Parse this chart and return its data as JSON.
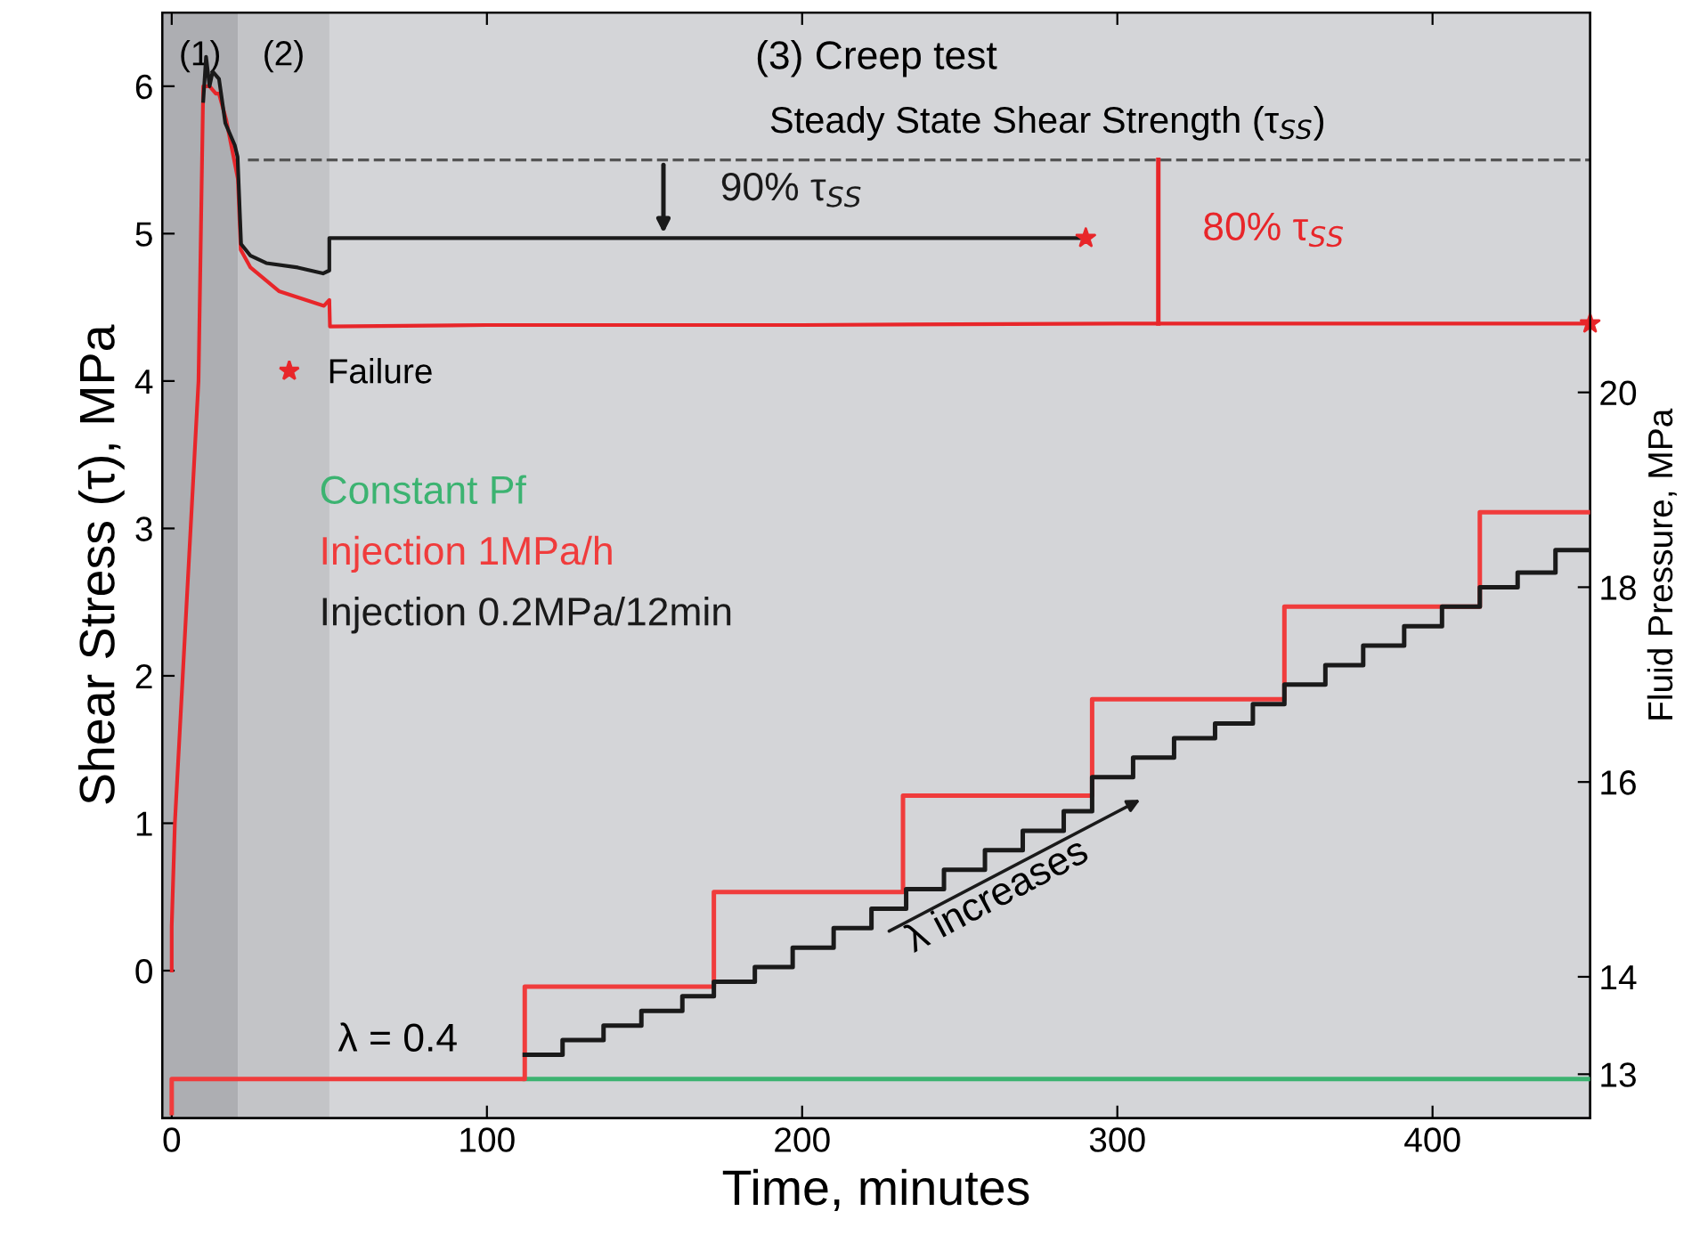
{
  "chart_data": {
    "type": "line",
    "xlabel": "Time, minutes",
    "ylabel": "Shear Stress (τ), MPa",
    "y2label": "Fluid Pressure, MPa",
    "xlim": [
      -3,
      450
    ],
    "xticks": [
      0,
      100,
      200,
      300,
      400
    ],
    "ylim": [
      -1,
      6.5
    ],
    "yticks": [
      0,
      1,
      2,
      3,
      4,
      5,
      6
    ],
    "y2lim": [
      12.55,
      23.9
    ],
    "y2ticks": [
      13,
      14,
      16,
      18,
      20
    ],
    "legend": "top left",
    "grid": false,
    "bands": [
      {
        "axis": "x",
        "from": -3,
        "to": 21,
        "label": "(1)",
        "color": "#adaeb2"
      },
      {
        "axis": "x",
        "from": 21,
        "to": 50,
        "label": "(2)",
        "color": "#c3c4c7"
      }
    ],
    "ref_lines": [
      {
        "axis": "y",
        "value": 5.5,
        "label": "Steady State Shear Strength (τ$_{SS}$)",
        "color": "#555555",
        "line_style": "dashed"
      }
    ],
    "annotations": [
      "(3) Creep test",
      "λ = 0.4",
      "λ increases",
      {
        "text": "90% τ$_{SS}$",
        "x": 156,
        "y": 4.97
      },
      {
        "text": "80% τ$_{SS}$",
        "x": 313,
        "y": 4.39
      }
    ],
    "series": [
      {
        "axis": "y",
        "color": "#e8262a",
        "x": [
          0,
          0,
          1,
          3.5,
          6,
          8.5,
          10,
          12,
          14,
          15,
          17.3,
          21,
          21.9,
          25,
          34,
          48.3,
          50,
          50.2,
          100,
          200,
          300,
          450
        ],
        "values": [
          0,
          0.3,
          1,
          2,
          3,
          4,
          6,
          6.0,
          5.95,
          5.95,
          5.77,
          5.37,
          4.89,
          4.77,
          4.61,
          4.51,
          4.55,
          4.37,
          4.38,
          4.38,
          4.39,
          4.39
        ]
      },
      {
        "axis": "y",
        "color": "#1a1a1a",
        "x": [
          10,
          10.9,
          12,
          13,
          15,
          17,
          20,
          20.9,
          22,
          25,
          30,
          40,
          48,
          50,
          50,
          290
        ],
        "values": [
          5.9,
          6.2,
          6.0,
          6.1,
          6.05,
          5.75,
          5.6,
          5.52,
          4.93,
          4.85,
          4.8,
          4.77,
          4.73,
          4.75,
          4.97,
          4.97
        ]
      },
      {
        "type": "scatter",
        "axis": "y",
        "name": "Failure",
        "color": "#e8262a",
        "marker": "star",
        "x": [
          290,
          450
        ],
        "values": [
          4.97,
          4.39
        ]
      },
      {
        "type": "step",
        "axis": "y2",
        "name": "Constant Pf",
        "color": "#3cb371",
        "x": [
          112,
          450
        ],
        "values": [
          12.95,
          12.95
        ]
      },
      {
        "type": "step",
        "axis": "y2",
        "name": "Injection 1MPa/h",
        "color": "#f03c3c",
        "x": [
          0,
          0,
          112,
          172,
          232,
          292,
          353,
          415,
          450
        ],
        "values": [
          12.6,
          12.95,
          13.9,
          14.87,
          15.86,
          16.85,
          17.8,
          18.77,
          18.77
        ]
      },
      {
        "type": "step",
        "axis": "y2",
        "name": "Injection 0.2MPa/12min",
        "color": "#1a1a1a",
        "x": [
          112,
          124,
          137,
          149,
          162,
          172,
          185,
          197,
          210,
          222,
          233,
          245,
          258,
          270,
          283,
          292,
          305,
          318,
          331,
          343,
          353,
          366,
          378,
          391,
          403,
          415,
          427,
          439,
          450
        ],
        "values": [
          13.2,
          13.35,
          13.5,
          13.65,
          13.8,
          13.95,
          14.1,
          14.3,
          14.5,
          14.7,
          14.9,
          15.1,
          15.3,
          15.5,
          15.7,
          16.05,
          16.25,
          16.45,
          16.6,
          16.8,
          17.0,
          17.2,
          17.4,
          17.6,
          17.8,
          18.0,
          18.15,
          18.38,
          18.38
        ]
      }
    ]
  }
}
